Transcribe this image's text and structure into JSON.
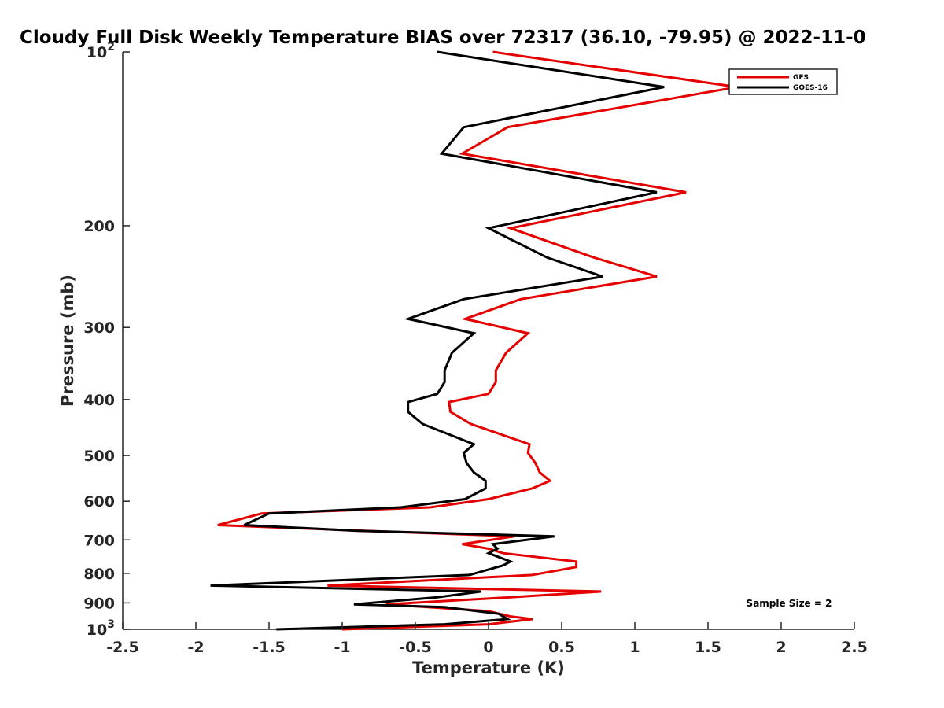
{
  "chart_data": {
    "type": "line",
    "title": "Cloudy Full Disk Weekly Temperature BIAS over 72317 (36.10, -79.95) @ 2022-11-0",
    "xlabel": "Temperature (K)",
    "ylabel": "Pressure (mb)",
    "xlim": [
      -2.5,
      2.5
    ],
    "ylim": [
      100,
      1000
    ],
    "y_scale": "log",
    "y_reversed": true,
    "x_ticks": [
      -2.5,
      -2,
      -1.5,
      -1,
      -0.5,
      0,
      0.5,
      1,
      1.5,
      2,
      2.5
    ],
    "x_tick_labels": [
      "-2.5",
      "-2",
      "-1.5",
      "-1",
      "-0.5",
      "0",
      "0.5",
      "1",
      "1.5",
      "2",
      "2.5"
    ],
    "y_ticks": [
      100,
      200,
      300,
      400,
      500,
      600,
      700,
      800,
      900,
      1000
    ],
    "y_tick_labels": [
      {
        "base": "10",
        "exp": "2"
      },
      {
        "base": "200",
        "exp": ""
      },
      {
        "base": "300",
        "exp": ""
      },
      {
        "base": "400",
        "exp": ""
      },
      {
        "base": "500",
        "exp": ""
      },
      {
        "base": "600",
        "exp": ""
      },
      {
        "base": "700",
        "exp": ""
      },
      {
        "base": "800",
        "exp": ""
      },
      {
        "base": "900",
        "exp": ""
      },
      {
        "base": "10",
        "exp": "3"
      }
    ],
    "grid": false,
    "legend_position": "top-right",
    "annotation": "Sample Size = 2",
    "series": [
      {
        "name": "GFS",
        "color": "#e50000",
        "points": [
          [
            0.03,
            100
          ],
          [
            1.7,
            115
          ],
          [
            0.13,
            135
          ],
          [
            -0.18,
            150
          ],
          [
            1.35,
            175
          ],
          [
            0.15,
            202
          ],
          [
            0.72,
            227
          ],
          [
            1.15,
            245
          ],
          [
            0.22,
            268
          ],
          [
            -0.16,
            290
          ],
          [
            0.27,
            307
          ],
          [
            0.12,
            332
          ],
          [
            0.05,
            356
          ],
          [
            0.05,
            373
          ],
          [
            0.0,
            391
          ],
          [
            -0.27,
            404
          ],
          [
            -0.26,
            420
          ],
          [
            -0.12,
            441
          ],
          [
            0.28,
            478
          ],
          [
            0.27,
            495
          ],
          [
            0.32,
            515
          ],
          [
            0.35,
            535
          ],
          [
            0.42,
            553
          ],
          [
            0.3,
            570
          ],
          [
            0.0,
            595
          ],
          [
            -0.4,
            615
          ],
          [
            -1.55,
            630
          ],
          [
            -1.85,
            660
          ],
          [
            -0.85,
            675
          ],
          [
            0.18,
            690
          ],
          [
            -0.18,
            712
          ],
          [
            0.0,
            725
          ],
          [
            0.1,
            738
          ],
          [
            0.6,
            763
          ],
          [
            0.6,
            780
          ],
          [
            0.3,
            805
          ],
          [
            -1.1,
            840
          ],
          [
            0.77,
            860
          ],
          [
            0.15,
            880
          ],
          [
            -0.7,
            905
          ],
          [
            0.0,
            930
          ],
          [
            0.15,
            950
          ],
          [
            0.3,
            960
          ],
          [
            0.0,
            980
          ],
          [
            -1.0,
            1000
          ]
        ]
      },
      {
        "name": "GOES-16",
        "color": "#000000",
        "points": [
          [
            -0.35,
            100
          ],
          [
            1.2,
            115
          ],
          [
            -0.17,
            135
          ],
          [
            -0.32,
            150
          ],
          [
            1.15,
            175
          ],
          [
            0.0,
            202
          ],
          [
            0.4,
            227
          ],
          [
            0.78,
            245
          ],
          [
            -0.17,
            268
          ],
          [
            -0.55,
            290
          ],
          [
            -0.1,
            307
          ],
          [
            -0.25,
            332
          ],
          [
            -0.3,
            356
          ],
          [
            -0.3,
            373
          ],
          [
            -0.35,
            391
          ],
          [
            -0.55,
            404
          ],
          [
            -0.55,
            420
          ],
          [
            -0.45,
            441
          ],
          [
            -0.1,
            478
          ],
          [
            -0.17,
            495
          ],
          [
            -0.15,
            515
          ],
          [
            -0.1,
            535
          ],
          [
            -0.02,
            553
          ],
          [
            -0.02,
            570
          ],
          [
            -0.16,
            595
          ],
          [
            -0.6,
            615
          ],
          [
            -1.5,
            630
          ],
          [
            -1.67,
            660
          ],
          [
            -0.9,
            675
          ],
          [
            0.45,
            690
          ],
          [
            0.03,
            712
          ],
          [
            0.06,
            725
          ],
          [
            0.0,
            738
          ],
          [
            0.15,
            763
          ],
          [
            0.1,
            775
          ],
          [
            -0.13,
            805
          ],
          [
            -1.9,
            840
          ],
          [
            -0.05,
            860
          ],
          [
            -0.35,
            880
          ],
          [
            -0.92,
            905
          ],
          [
            -0.3,
            915
          ],
          [
            0.07,
            940
          ],
          [
            0.13,
            960
          ],
          [
            -0.3,
            980
          ],
          [
            -1.45,
            1000
          ]
        ]
      }
    ]
  }
}
